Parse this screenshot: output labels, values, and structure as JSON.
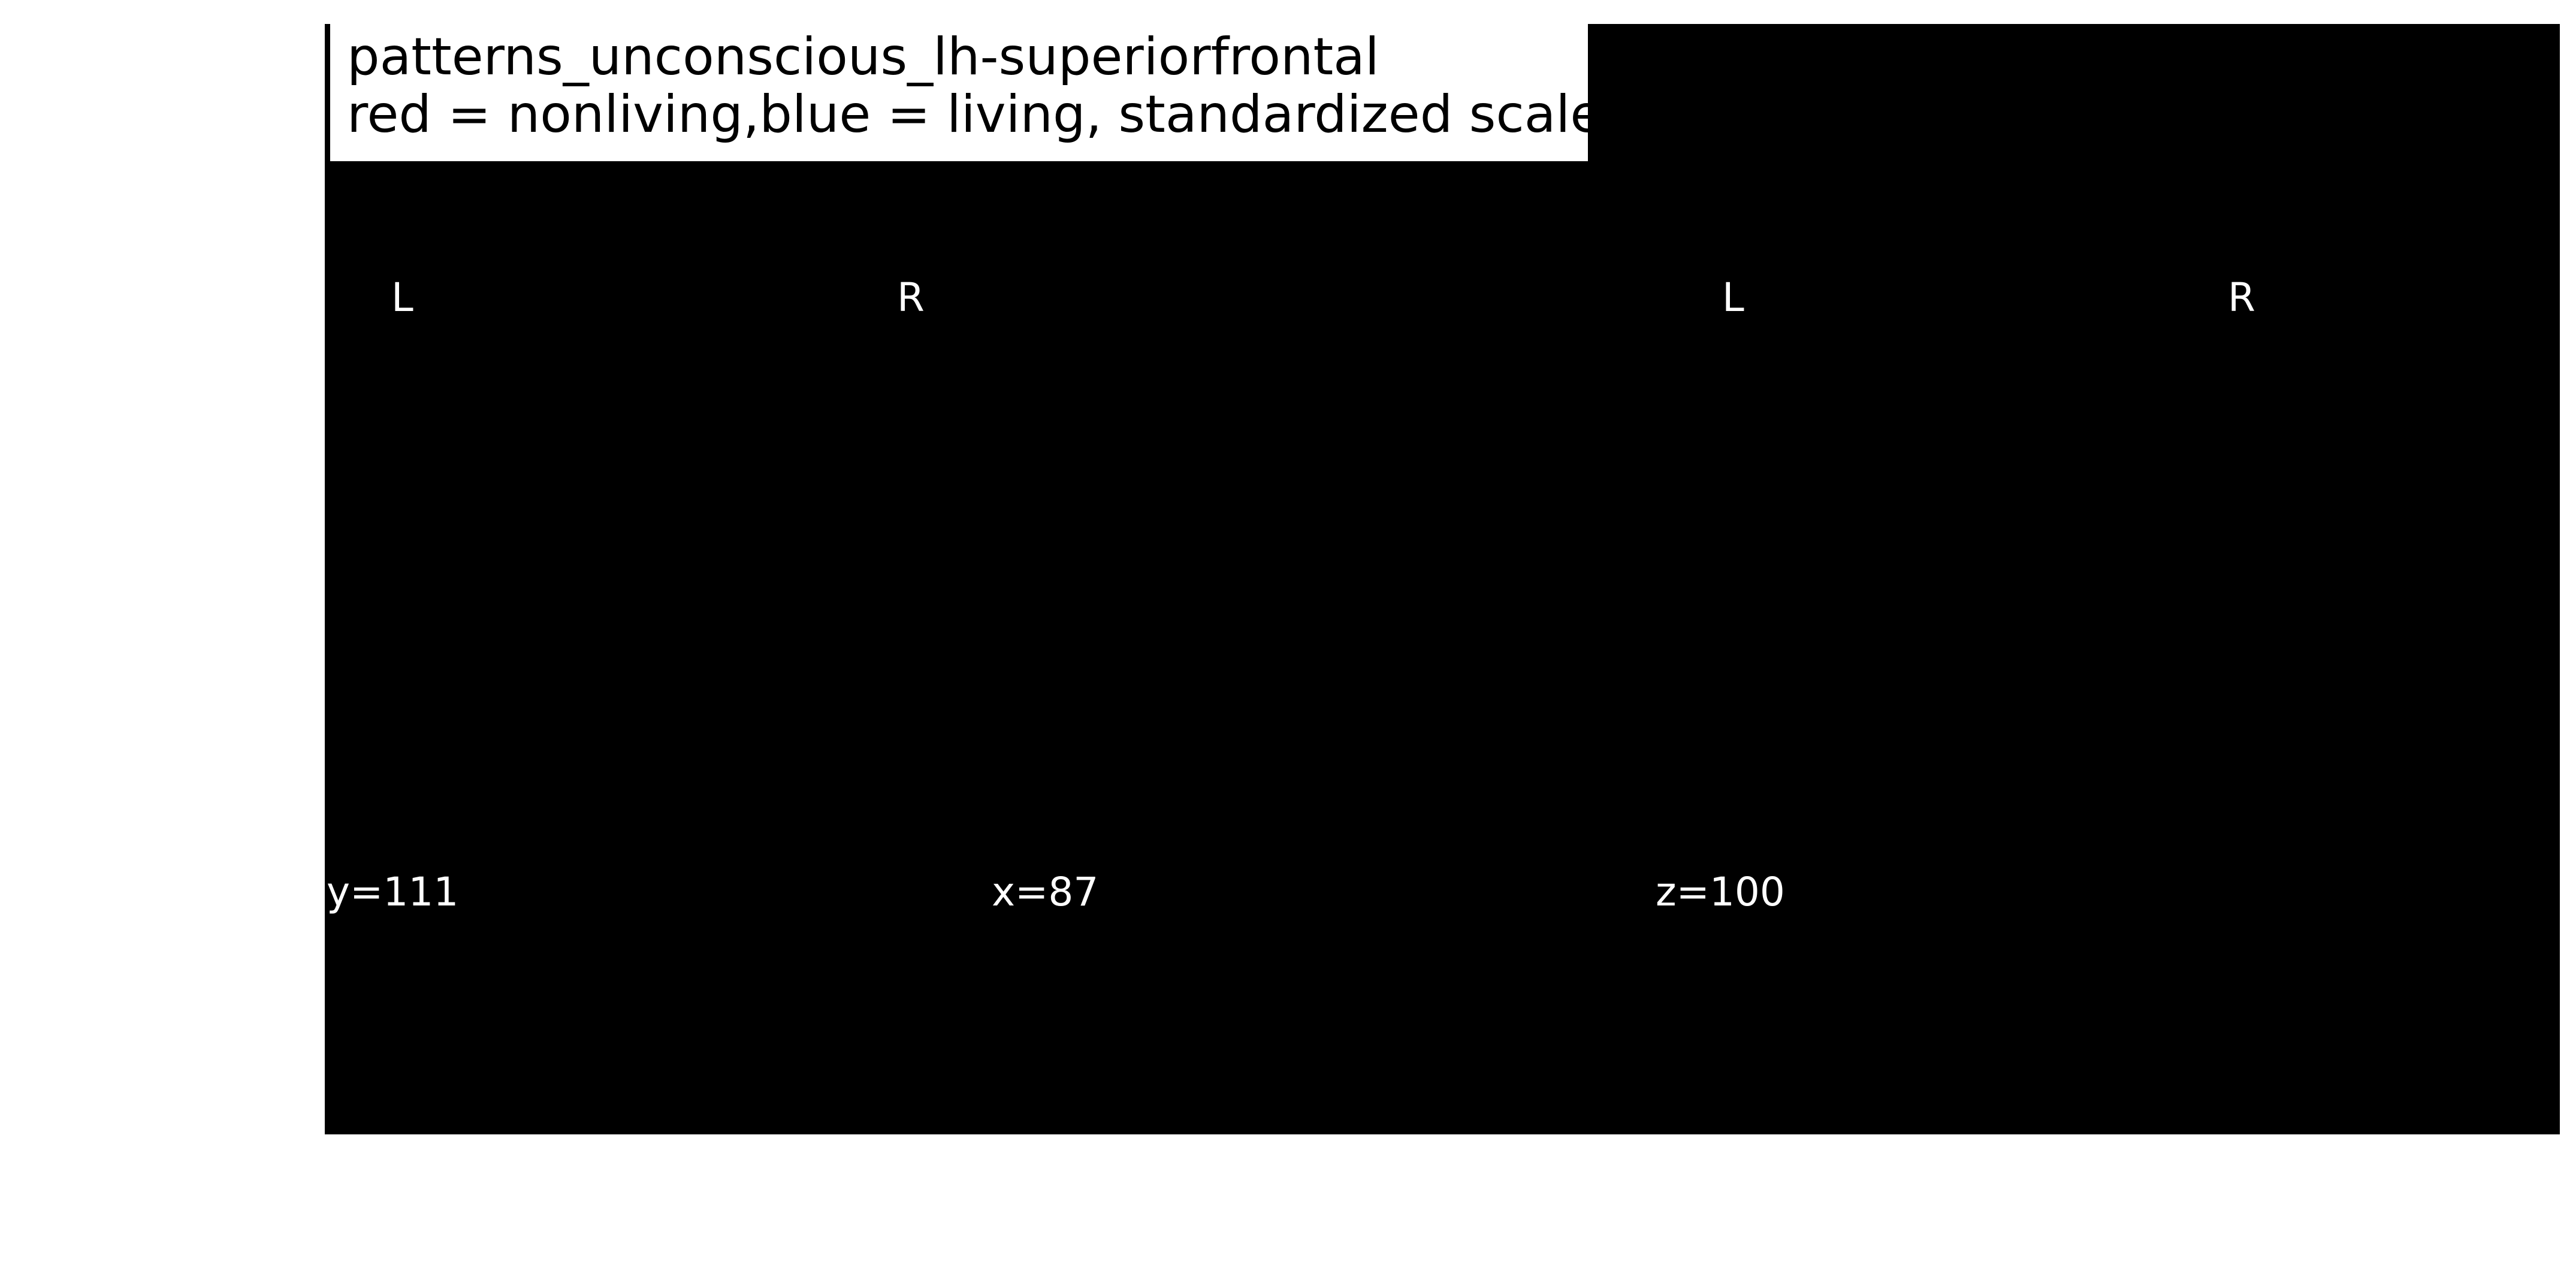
{
  "title": {
    "line1": "patterns_unconscious_lh-superiorfrontal",
    "line2": "red = nonliving,blue = living, standardized scale"
  },
  "orientation_labels": {
    "left_view_left": "L",
    "left_view_right": "R",
    "right_view_left": "L",
    "right_view_right": "R"
  },
  "coordinate_labels": {
    "coronal": "y=111",
    "sagittal": "x=87",
    "axial": "z=100"
  },
  "colors": {
    "background": "#000000",
    "page": "#ffffff",
    "text_on_dark": "#ffffff",
    "title_text": "#000000"
  }
}
